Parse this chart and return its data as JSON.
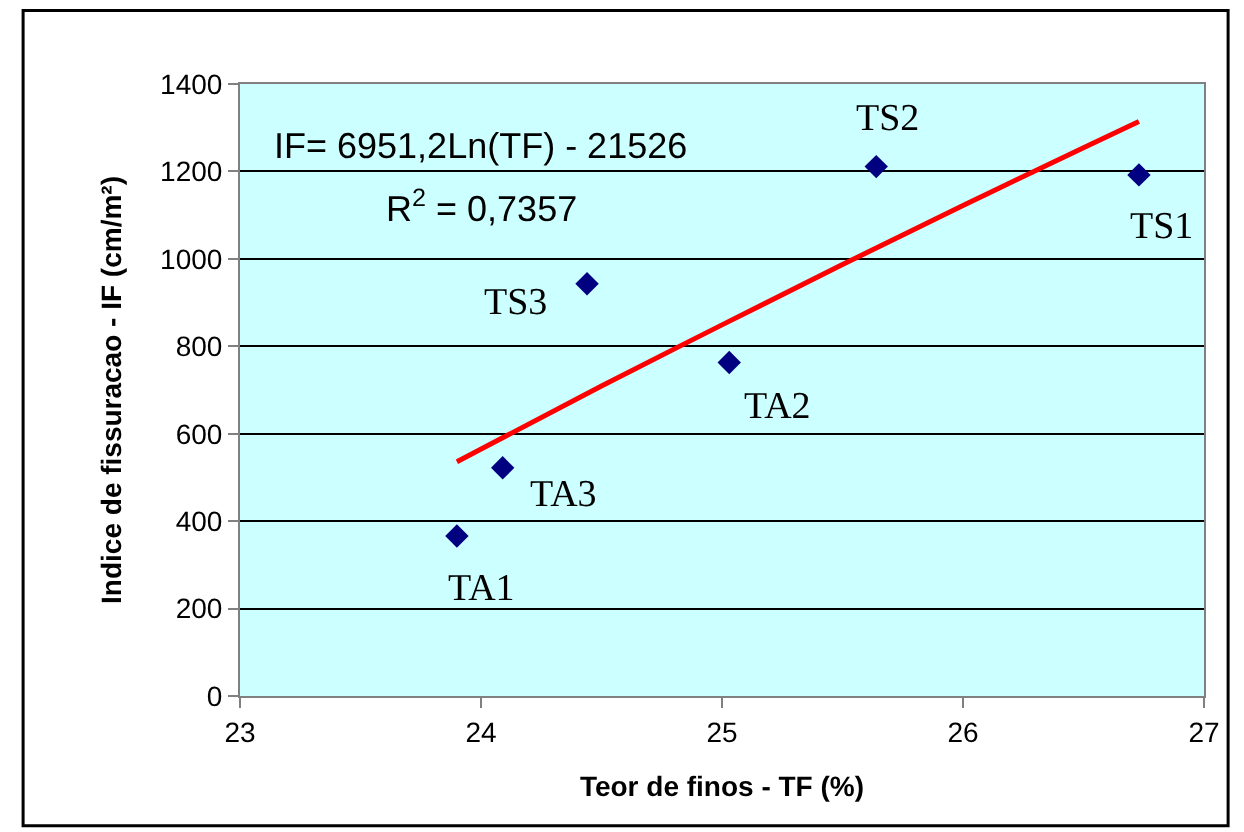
{
  "chart_data": {
    "type": "scatter",
    "xlabel": "Teor de finos - TF (%)",
    "ylabel": "Indice de fissuracao - IF (cm/m²)",
    "series": [
      {
        "color": "#000080",
        "marker": "diamond",
        "x": [
          23.9,
          24.09,
          24.44,
          25.03,
          25.64,
          26.73
        ],
        "values": [
          366,
          522,
          943,
          763,
          1211,
          1192
        ]
      },
      {
        "type": "line",
        "color": "#ff0000",
        "line_style": "solid",
        "marker": "none",
        "x": [
          23.9,
          24.5,
          25.0,
          25.5,
          26.0,
          26.5,
          26.73
        ],
        "values": [
          536,
          709,
          849,
          987,
          1122,
          1254,
          1314
        ]
      }
    ],
    "annotations": [
      {
        "text": "TA1",
        "x": 23.9,
        "y": 366
      },
      {
        "text": "TA3",
        "x": 24.09,
        "y": 522
      },
      {
        "text": "TS3",
        "x": 24.44,
        "y": 943
      },
      {
        "text": "TA2",
        "x": 25.03,
        "y": 763
      },
      {
        "text": "TS2",
        "x": 25.64,
        "y": 1211
      },
      {
        "text": "TS1",
        "x": 26.73,
        "y": 1192
      },
      "IF= 6951,2Ln(TF) - 21526",
      "R$^{2}$ = 0,7357"
    ],
    "xlim": [
      23,
      27
    ],
    "xticks": [
      23,
      24,
      25,
      26,
      27
    ],
    "ylim": [
      0,
      1400
    ],
    "yticks": [
      0,
      200,
      400,
      600,
      800,
      1000,
      1200,
      1400
    ],
    "grid": "y",
    "legend": false
  }
}
